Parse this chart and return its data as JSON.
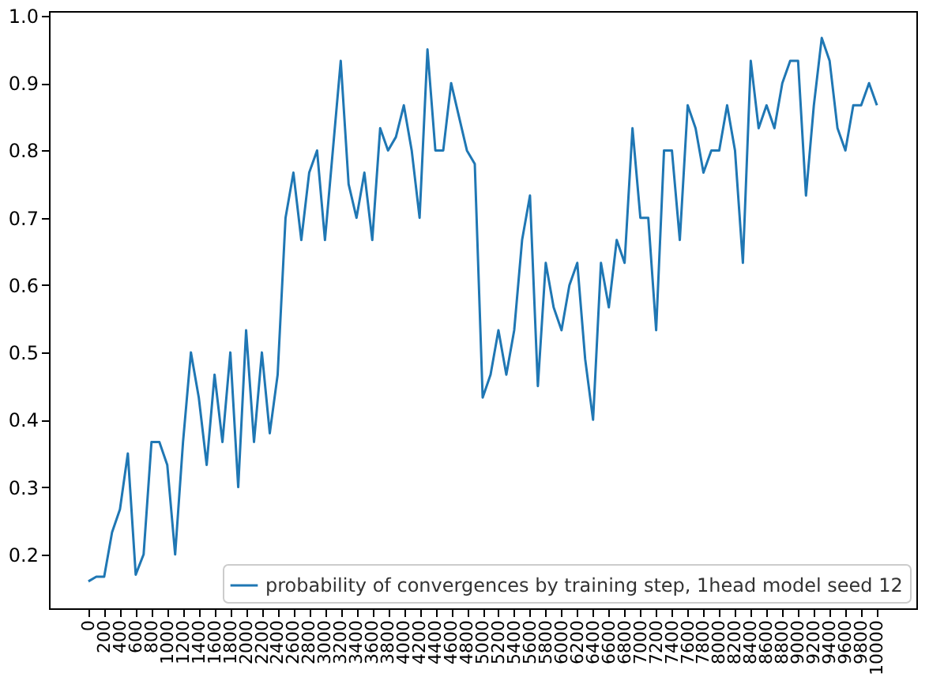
{
  "chart_data": {
    "type": "line",
    "x": [
      0,
      100,
      200,
      300,
      400,
      500,
      600,
      700,
      800,
      900,
      1000,
      1100,
      1200,
      1300,
      1400,
      1500,
      1600,
      1700,
      1800,
      1900,
      2000,
      2100,
      2200,
      2300,
      2400,
      2500,
      2600,
      2700,
      2800,
      2900,
      3000,
      3100,
      3200,
      3300,
      3400,
      3500,
      3600,
      3700,
      3800,
      3900,
      4000,
      4100,
      4200,
      4300,
      4400,
      4500,
      4600,
      4700,
      4800,
      4900,
      5000,
      5100,
      5200,
      5300,
      5400,
      5500,
      5600,
      5700,
      5800,
      5900,
      6000,
      6100,
      6200,
      6300,
      6400,
      6500,
      6600,
      6700,
      6800,
      6900,
      7000,
      7100,
      7200,
      7300,
      7400,
      7500,
      7600,
      7700,
      7800,
      7900,
      8000,
      8100,
      8200,
      8300,
      8400,
      8500,
      8600,
      8700,
      8800,
      8900,
      9000,
      9100,
      9200,
      9300,
      9400,
      9500,
      9600,
      9700,
      9800,
      9900,
      10000
    ],
    "series": [
      {
        "name": "probability of convergences by training step, 1head model seed 12",
        "color": "#1f77b4",
        "values": [
          0.16,
          0.167,
          0.167,
          0.233,
          0.267,
          0.35,
          0.17,
          0.2,
          0.367,
          0.367,
          0.333,
          0.2,
          0.367,
          0.5,
          0.433,
          0.333,
          0.467,
          0.367,
          0.5,
          0.3,
          0.533,
          0.367,
          0.5,
          0.38,
          0.467,
          0.7,
          0.767,
          0.667,
          0.767,
          0.8,
          0.667,
          0.8,
          0.933,
          0.75,
          0.7,
          0.767,
          0.667,
          0.833,
          0.8,
          0.82,
          0.867,
          0.8,
          0.7,
          0.95,
          0.8,
          0.8,
          0.9,
          0.85,
          0.8,
          0.78,
          0.433,
          0.467,
          0.533,
          0.467,
          0.533,
          0.667,
          0.733,
          0.45,
          0.633,
          0.567,
          0.533,
          0.6,
          0.633,
          0.49,
          0.4,
          0.633,
          0.567,
          0.667,
          0.633,
          0.833,
          0.7,
          0.7,
          0.533,
          0.8,
          0.8,
          0.667,
          0.867,
          0.833,
          0.767,
          0.8,
          0.8,
          0.867,
          0.8,
          0.633,
          0.933,
          0.833,
          0.867,
          0.833,
          0.9,
          0.933,
          0.933,
          0.733,
          0.867,
          0.967,
          0.933,
          0.833,
          0.8,
          0.867,
          0.867,
          0.9,
          0.867
        ]
      }
    ],
    "xlim": [
      -500,
      10500
    ],
    "xticks": [
      0,
      200,
      400,
      600,
      800,
      1000,
      1200,
      1400,
      1600,
      1800,
      2000,
      2200,
      2400,
      2600,
      2800,
      3000,
      3200,
      3400,
      3600,
      3800,
      4000,
      4200,
      4400,
      4600,
      4800,
      5000,
      5200,
      5400,
      5600,
      5800,
      6000,
      6200,
      6400,
      6600,
      6800,
      7000,
      7200,
      7400,
      7600,
      7800,
      8000,
      8200,
      8400,
      8600,
      8800,
      9000,
      9200,
      9400,
      9600,
      9800,
      10000
    ],
    "ylim": [
      0.12,
      1.007
    ],
    "yticks": [
      0.2,
      0.3,
      0.4,
      0.5,
      0.6,
      0.7,
      0.8,
      0.9,
      {
        "value": 1,
        "label": "1.0"
      }
    ],
    "legend": "bottom right"
  }
}
